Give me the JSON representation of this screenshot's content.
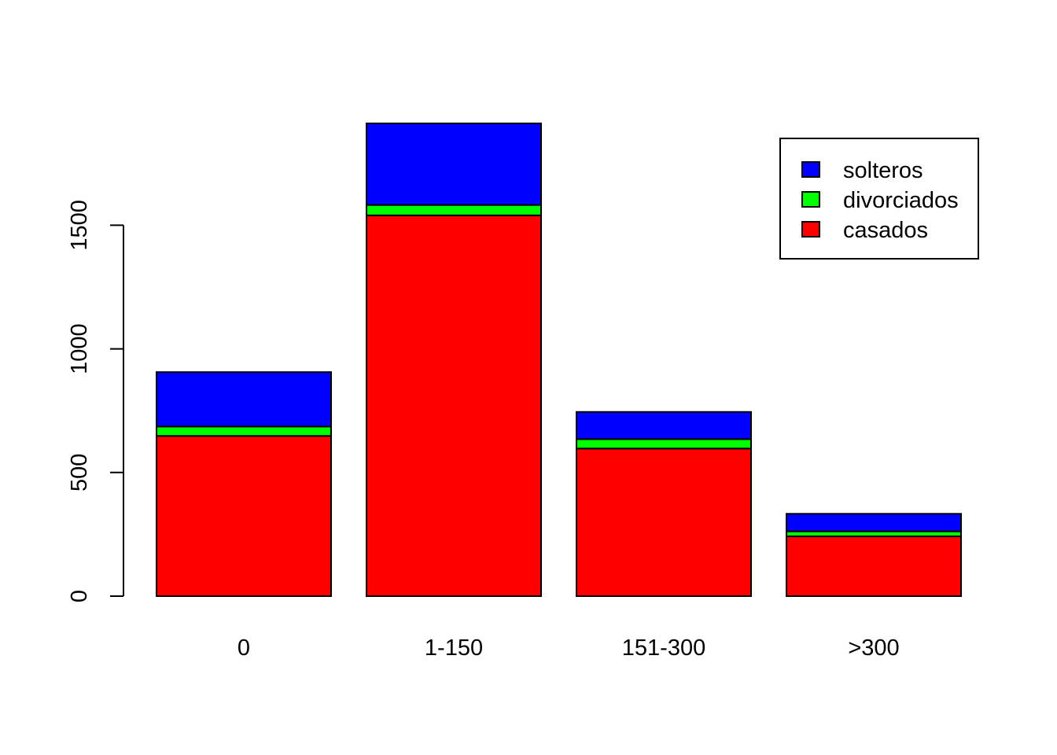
{
  "chart_data": {
    "type": "bar",
    "stacked": true,
    "categories": [
      "0",
      "1-150",
      "151-300",
      ">300"
    ],
    "series": [
      {
        "name": "casados",
        "color": "#ff0000",
        "values": [
          648,
          1540,
          597,
          242
        ]
      },
      {
        "name": "divorciados",
        "color": "#00ff00",
        "values": [
          38,
          42,
          38,
          20
        ]
      },
      {
        "name": "solteros",
        "color": "#0000ff",
        "values": [
          220,
          330,
          110,
          71
        ]
      }
    ],
    "legend_order": [
      "solteros",
      "divorciados",
      "casados"
    ],
    "legend_position": "top-right",
    "yticks": [
      "0",
      "500",
      "1000",
      "1500"
    ],
    "ylim": [
      0,
      1910
    ],
    "grid": false,
    "title": "",
    "xlabel": "",
    "ylabel": ""
  }
}
